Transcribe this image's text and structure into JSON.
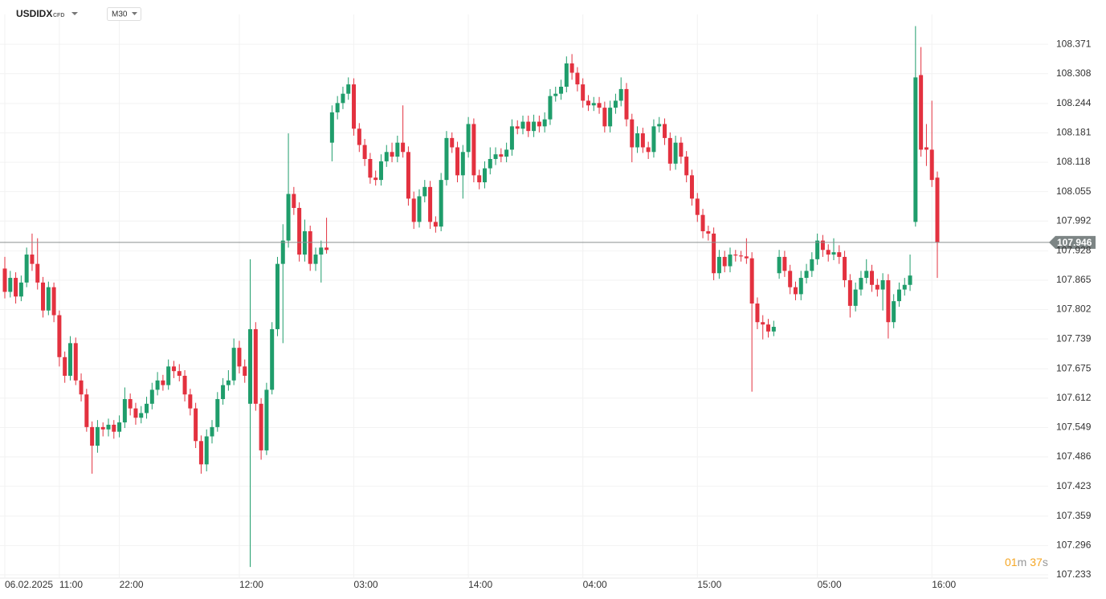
{
  "chart_data": {
    "type": "candlestick",
    "title": "USDIDX",
    "subtitle": "CFD",
    "timeframe": "M30",
    "countdown": {
      "minutes": "01",
      "minutes_unit": "m",
      "seconds": "37",
      "seconds_unit": "s"
    },
    "last_price": 107.946,
    "up_color": "#1f9d6b",
    "down_color": "#e3313f",
    "grid": true,
    "ylim": [
      107.226,
      108.435
    ],
    "yticks": [
      107.233,
      107.296,
      107.359,
      107.423,
      107.486,
      107.549,
      107.612,
      107.675,
      107.739,
      107.802,
      107.865,
      107.928,
      107.992,
      108.055,
      108.118,
      108.181,
      108.244,
      108.308,
      108.371
    ],
    "categories": [
      "06.02.2025",
      null,
      null,
      null,
      null,
      null,
      null,
      null,
      null,
      null,
      "11:00",
      null,
      null,
      null,
      null,
      null,
      null,
      null,
      null,
      null,
      null,
      "22:00",
      null,
      null,
      null,
      null,
      null,
      null,
      null,
      null,
      null,
      null,
      null,
      null,
      null,
      null,
      null,
      null,
      null,
      null,
      null,
      null,
      null,
      "12:00",
      null,
      null,
      null,
      null,
      null,
      null,
      null,
      null,
      null,
      null,
      null,
      null,
      null,
      null,
      null,
      null,
      null,
      null,
      null,
      null,
      "03:00",
      null,
      null,
      null,
      null,
      null,
      null,
      null,
      null,
      null,
      null,
      null,
      null,
      null,
      null,
      null,
      null,
      null,
      null,
      null,
      null,
      "14:00",
      null,
      null,
      null,
      null,
      null,
      null,
      null,
      null,
      null,
      null,
      null,
      null,
      null,
      null,
      null,
      null,
      null,
      null,
      null,
      null,
      "04:00",
      null,
      null,
      null,
      null,
      null,
      null,
      null,
      null,
      null,
      null,
      null,
      null,
      null,
      null,
      null,
      null,
      null,
      null,
      null,
      null,
      "15:00",
      null,
      null,
      null,
      null,
      null,
      null,
      null,
      null,
      null,
      null,
      null,
      null,
      null,
      null,
      null,
      null,
      null,
      null,
      null,
      null,
      null,
      "05:00",
      null,
      null,
      null,
      null,
      null,
      null,
      null,
      null,
      null,
      null,
      null,
      null,
      null,
      null,
      null,
      null,
      null,
      null,
      null,
      null,
      "16:00",
      null
    ],
    "open": [
      107.89,
      107.84,
      107.87,
      107.83,
      107.86,
      107.92,
      107.9,
      107.86,
      107.8,
      107.85,
      107.79,
      107.7,
      107.66,
      107.73,
      107.65,
      107.62,
      107.55,
      107.51,
      107.55,
      107.545,
      107.555,
      107.54,
      107.56,
      107.61,
      107.59,
      107.57,
      107.58,
      107.6,
      107.63,
      107.65,
      107.64,
      107.68,
      107.67,
      107.66,
      107.62,
      107.59,
      107.52,
      107.47,
      107.53,
      107.55,
      107.61,
      107.64,
      107.65,
      107.72,
      107.68,
      107.6,
      107.76,
      107.6,
      107.5,
      107.63,
      107.76,
      107.9,
      107.95,
      108.05,
      108.02,
      107.92,
      107.97,
      107.9,
      107.92,
      107.935,
      108.16,
      108.225,
      108.245,
      108.265,
      108.285,
      108.19,
      108.155,
      108.125,
      108.085,
      108.08,
      108.12,
      108.14,
      108.13,
      108.16,
      108.14,
      108.04,
      107.99,
      108.045,
      108.065,
      107.99,
      107.98,
      108.08,
      108.17,
      108.15,
      108.09,
      108.14,
      108.2,
      108.09,
      108.075,
      108.105,
      108.125,
      108.135,
      108.13,
      108.145,
      108.195,
      108.19,
      108.205,
      108.185,
      108.205,
      108.195,
      108.21,
      108.26,
      108.265,
      108.28,
      108.33,
      108.31,
      108.285,
      108.25,
      108.24,
      108.245,
      108.235,
      108.195,
      108.235,
      108.25,
      108.275,
      108.21,
      108.15,
      108.18,
      108.15,
      108.14,
      108.195,
      108.2,
      108.17,
      108.115,
      108.16,
      108.13,
      108.09,
      108.04,
      108.005,
      107.97,
      107.965,
      107.88,
      107.915,
      107.895,
      107.92,
      107.918,
      107.916,
      107.912,
      107.815,
      107.775,
      107.77,
      107.755,
      107.88,
      107.915,
      107.885,
      107.85,
      107.835,
      107.87,
      107.885,
      107.91,
      107.95,
      107.93,
      107.92,
      107.925,
      107.915,
      107.865,
      107.81,
      107.845,
      107.87,
      107.885,
      107.855,
      107.845,
      107.865,
      107.775,
      107.82,
      107.845,
      107.855,
      107.99,
      108.305,
      108.15,
      108.145,
      108.085
    ],
    "high": [
      107.915,
      107.885,
      107.882,
      107.875,
      107.935,
      107.965,
      107.955,
      107.872,
      107.862,
      107.86,
      107.8,
      107.712,
      107.745,
      107.742,
      107.665,
      107.632,
      107.562,
      107.565,
      107.56,
      107.568,
      107.565,
      107.575,
      107.635,
      107.622,
      107.602,
      107.595,
      107.615,
      107.645,
      107.668,
      107.662,
      107.695,
      107.692,
      107.685,
      107.672,
      107.632,
      107.602,
      107.532,
      107.545,
      107.565,
      107.625,
      107.655,
      107.672,
      107.74,
      107.735,
      107.695,
      107.91,
      107.775,
      107.612,
      107.645,
      107.775,
      107.915,
      107.985,
      108.18,
      108.065,
      108.032,
      107.995,
      107.982,
      107.935,
      107.95,
      107.999,
      108.24,
      108.26,
      108.28,
      108.3,
      108.298,
      108.202,
      108.168,
      108.138,
      108.1,
      108.135,
      108.155,
      108.16,
      108.175,
      108.24,
      108.152,
      108.055,
      108.06,
      108.08,
      108.078,
      108.002,
      108.095,
      108.185,
      108.182,
      108.162,
      108.155,
      108.215,
      108.212,
      108.102,
      108.12,
      108.15,
      108.15,
      108.148,
      108.16,
      108.21,
      108.208,
      108.218,
      108.218,
      108.22,
      108.218,
      108.225,
      108.275,
      108.28,
      108.295,
      108.345,
      108.35,
      108.322,
      108.298,
      108.262,
      108.258,
      108.258,
      108.248,
      108.25,
      108.265,
      108.3,
      108.288,
      108.222,
      108.195,
      108.192,
      108.162,
      108.21,
      108.215,
      108.212,
      108.182,
      108.175,
      108.172,
      108.142,
      108.102,
      108.052,
      108.018,
      107.982,
      107.978,
      107.93,
      107.928,
      107.935,
      107.93,
      107.928,
      107.955,
      107.925,
      107.828,
      107.79,
      107.782,
      107.778,
      107.93,
      107.928,
      107.898,
      107.862,
      107.885,
      107.9,
      107.925,
      107.965,
      107.962,
      107.942,
      107.955,
      107.94,
      107.928,
      107.878,
      107.86,
      107.885,
      107.91,
      107.898,
      107.868,
      107.88,
      107.878,
      107.835,
      107.86,
      107.87,
      107.92,
      108.41,
      108.365,
      108.2,
      108.25,
      108.098
    ],
    "low": [
      107.826,
      107.828,
      107.815,
      107.82,
      107.85,
      107.885,
      107.845,
      107.785,
      107.79,
      107.775,
      107.68,
      107.645,
      107.65,
      107.64,
      107.605,
      107.54,
      107.45,
      107.495,
      107.53,
      107.53,
      107.525,
      107.528,
      107.548,
      107.575,
      107.555,
      107.558,
      107.568,
      107.588,
      107.618,
      107.628,
      107.63,
      107.655,
      107.648,
      107.605,
      107.575,
      107.505,
      107.45,
      107.455,
      107.515,
      107.54,
      107.598,
      107.628,
      107.64,
      107.665,
      107.645,
      107.25,
      107.585,
      107.48,
      107.49,
      107.62,
      107.745,
      107.73,
      107.935,
      108.005,
      107.905,
      107.905,
      107.885,
      107.885,
      107.86,
      107.922,
      108.12,
      108.21,
      108.232,
      108.252,
      108.175,
      108.14,
      108.11,
      108.072,
      108.068,
      108.068,
      108.108,
      108.118,
      108.118,
      108.128,
      108.025,
      107.975,
      107.978,
      108.032,
      107.975,
      107.967,
      107.97,
      108.068,
      108.138,
      108.075,
      108.04,
      108.128,
      108.075,
      108.06,
      108.062,
      108.092,
      108.112,
      108.118,
      108.118,
      108.132,
      108.178,
      108.178,
      108.172,
      108.172,
      108.182,
      108.182,
      108.198,
      108.248,
      108.252,
      108.268,
      108.295,
      108.27,
      108.235,
      108.228,
      108.228,
      108.222,
      108.182,
      108.182,
      108.222,
      108.238,
      108.195,
      108.118,
      108.138,
      108.138,
      108.125,
      108.128,
      108.182,
      108.155,
      108.1,
      108.102,
      108.115,
      108.075,
      108.025,
      107.99,
      107.955,
      107.95,
      107.865,
      107.868,
      107.882,
      107.882,
      107.905,
      107.905,
      107.9,
      107.626,
      107.76,
      107.738,
      107.742,
      107.745,
      107.868,
      107.872,
      107.835,
      107.822,
      107.822,
      107.858,
      107.872,
      107.898,
      107.915,
      107.905,
      107.908,
      107.9,
      107.85,
      107.785,
      107.798,
      107.832,
      107.858,
      107.84,
      107.83,
      107.8,
      107.74,
      107.762,
      107.808,
      107.832,
      107.842,
      107.98,
      108.13,
      108.11,
      108.065,
      107.87
    ],
    "close": [
      107.84,
      107.87,
      107.83,
      107.86,
      107.92,
      107.9,
      107.86,
      107.8,
      107.85,
      107.79,
      107.7,
      107.66,
      107.73,
      107.65,
      107.62,
      107.55,
      107.51,
      107.55,
      107.545,
      107.555,
      107.54,
      107.56,
      107.61,
      107.59,
      107.57,
      107.58,
      107.6,
      107.63,
      107.65,
      107.64,
      107.68,
      107.67,
      107.66,
      107.62,
      107.59,
      107.52,
      107.47,
      107.53,
      107.55,
      107.61,
      107.64,
      107.65,
      107.72,
      107.68,
      107.66,
      107.76,
      107.6,
      107.5,
      107.63,
      107.76,
      107.9,
      107.95,
      108.05,
      108.02,
      107.92,
      107.97,
      107.9,
      107.92,
      107.935,
      107.93,
      108.225,
      108.245,
      108.265,
      108.285,
      108.19,
      108.155,
      108.125,
      108.085,
      108.08,
      108.12,
      108.14,
      108.13,
      108.16,
      108.14,
      108.04,
      107.99,
      108.045,
      108.065,
      107.99,
      107.98,
      108.08,
      108.17,
      108.15,
      108.09,
      108.14,
      108.2,
      108.09,
      108.075,
      108.105,
      108.125,
      108.135,
      108.13,
      108.145,
      108.195,
      108.19,
      108.205,
      108.185,
      108.205,
      108.195,
      108.21,
      108.26,
      108.265,
      108.28,
      108.33,
      108.31,
      108.285,
      108.25,
      108.24,
      108.245,
      108.235,
      108.195,
      108.235,
      108.25,
      108.275,
      108.21,
      108.15,
      108.18,
      108.15,
      108.14,
      108.195,
      108.2,
      108.17,
      108.115,
      108.16,
      108.13,
      108.09,
      108.04,
      108.005,
      107.97,
      107.965,
      107.88,
      107.915,
      107.895,
      107.92,
      107.918,
      107.916,
      107.912,
      107.815,
      107.775,
      107.77,
      107.755,
      107.765,
      107.915,
      107.885,
      107.85,
      107.835,
      107.87,
      107.885,
      107.91,
      107.95,
      107.93,
      107.92,
      107.925,
      107.915,
      107.865,
      107.81,
      107.845,
      107.87,
      107.885,
      107.855,
      107.845,
      107.865,
      107.775,
      107.82,
      107.845,
      107.855,
      107.875,
      108.3,
      108.145,
      108.145,
      108.08,
      107.946
    ]
  }
}
